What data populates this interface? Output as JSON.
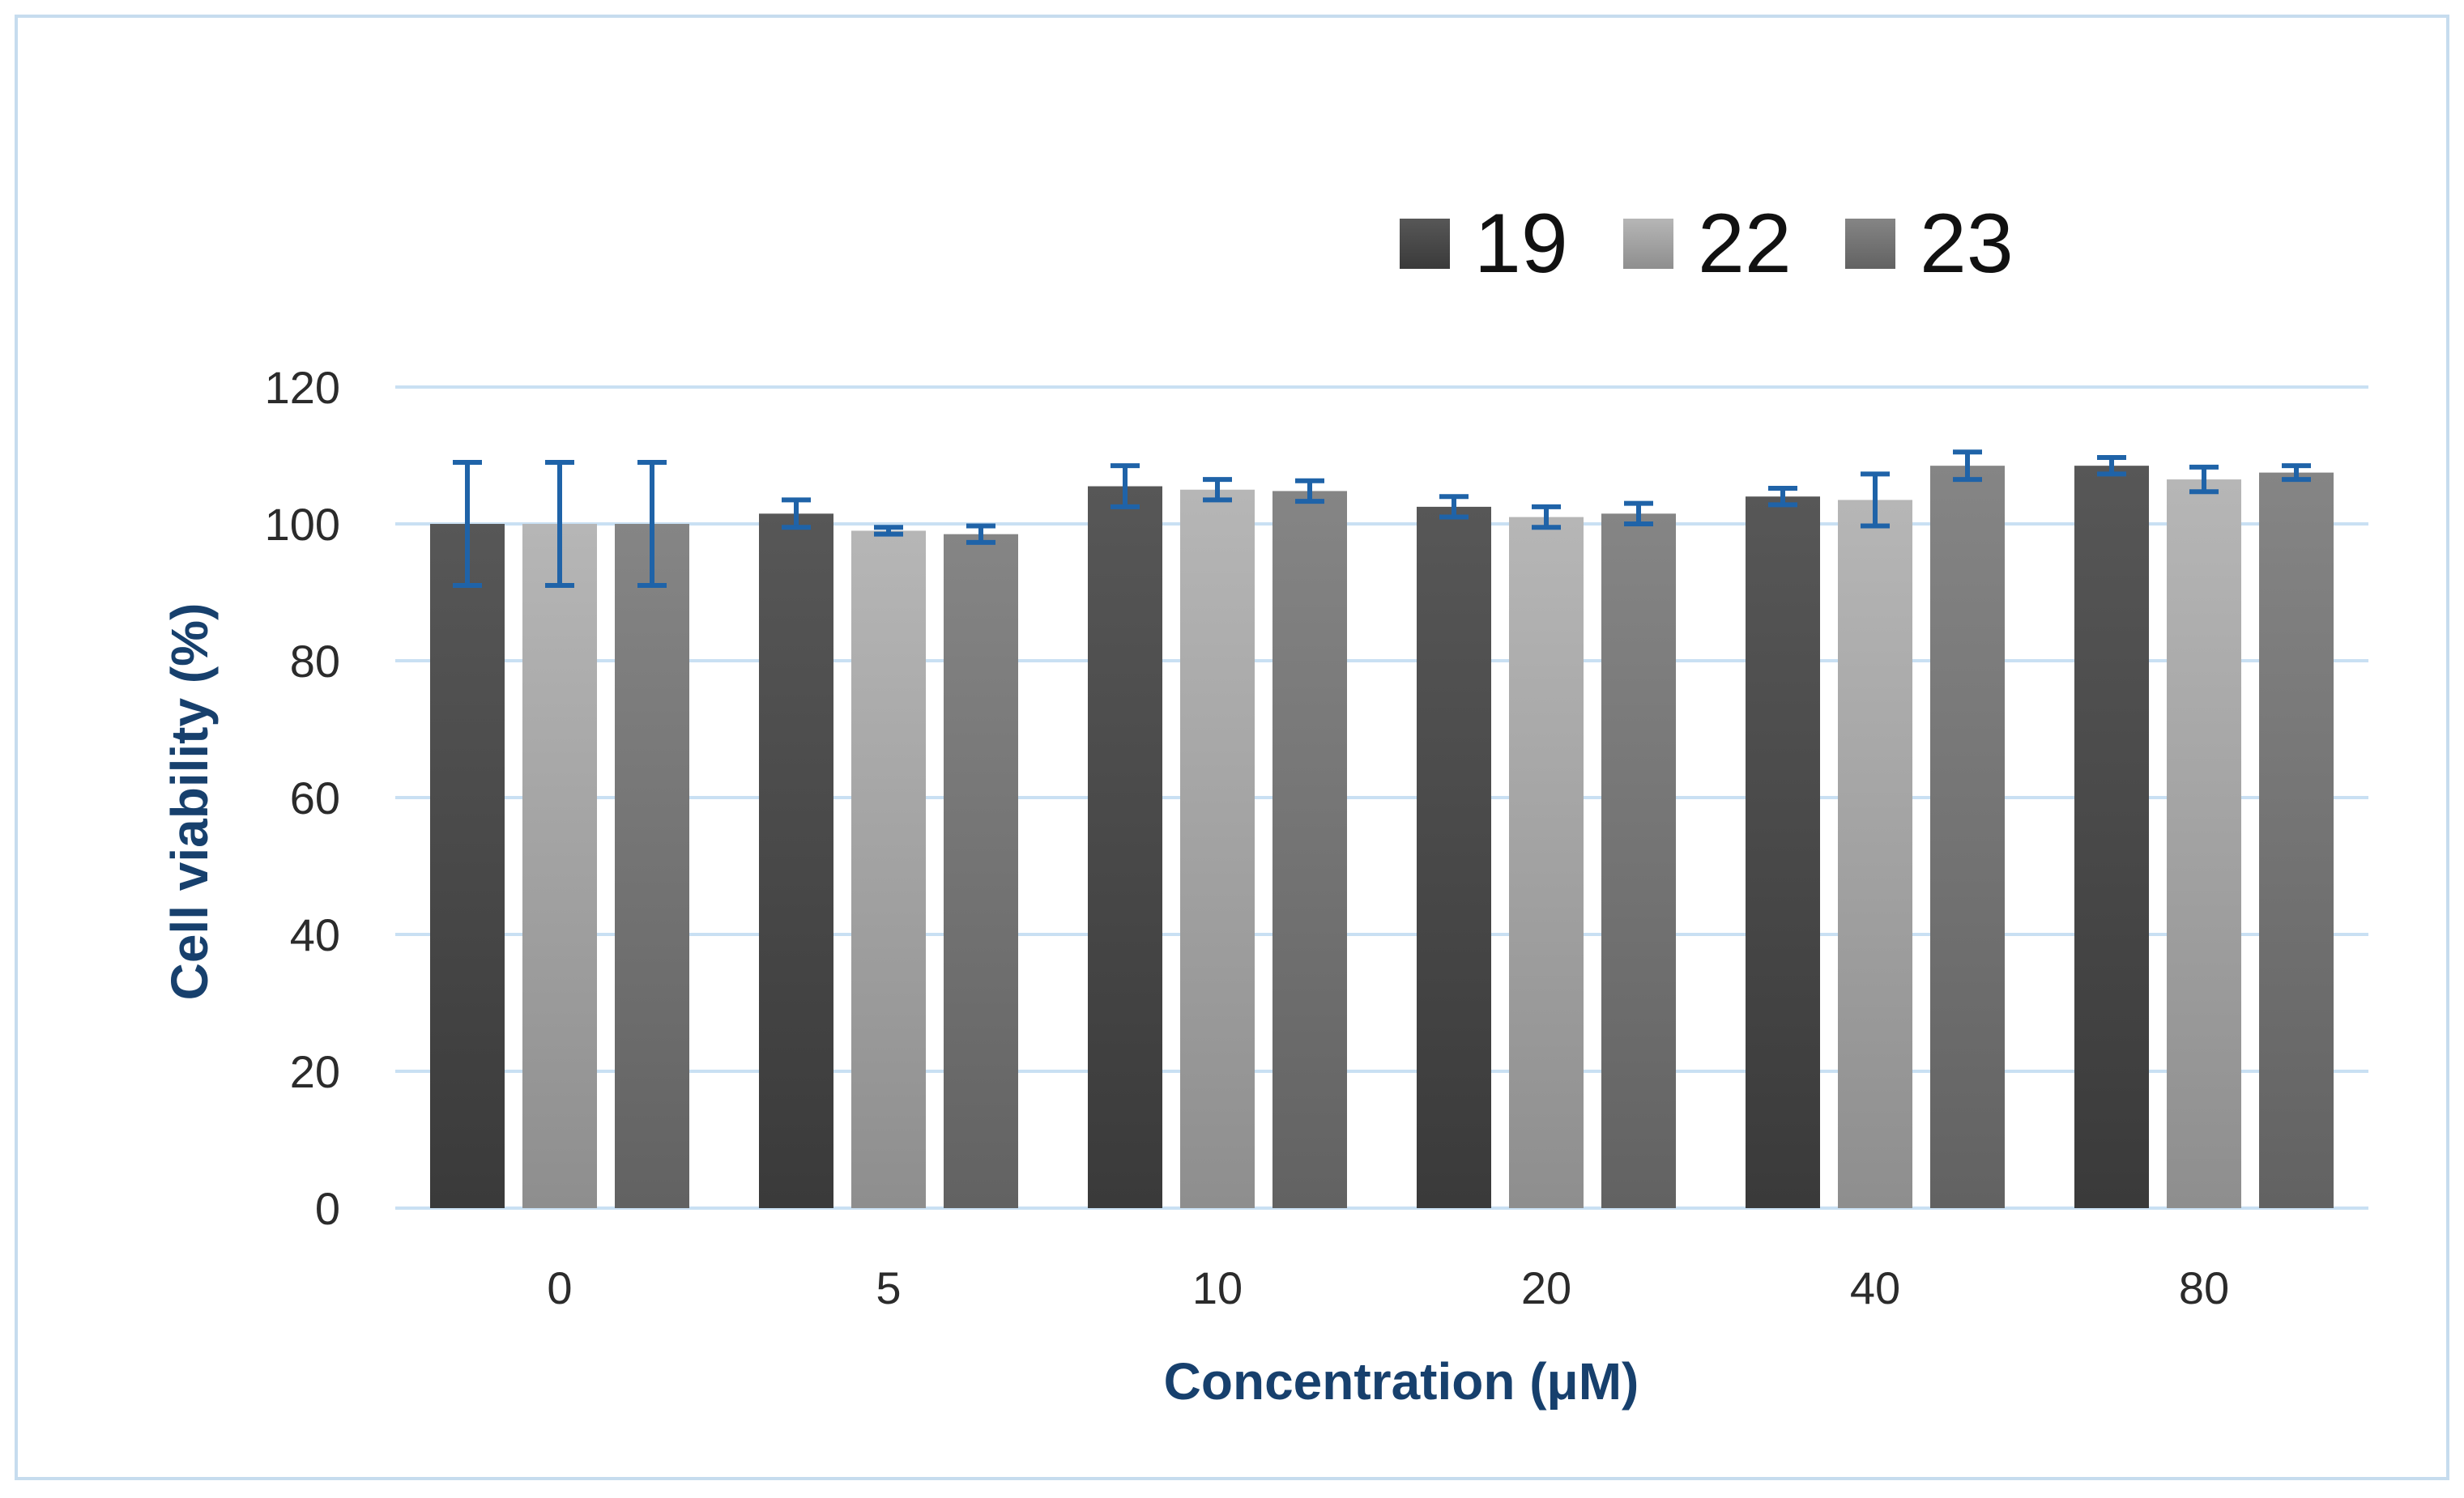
{
  "chart_data": {
    "type": "bar",
    "title": "",
    "xlabel": "Concentration (μM)",
    "ylabel": "Cell viability (%)",
    "categories": [
      "0",
      "5",
      "10",
      "20",
      "40",
      "80"
    ],
    "series": [
      {
        "name": "19",
        "values": [
          100,
          101.5,
          105.5,
          102.5,
          104,
          108.5
        ],
        "errors": [
          9,
          2,
          3,
          1.5,
          1.2,
          1.2
        ]
      },
      {
        "name": "22",
        "values": [
          100,
          99,
          105,
          101,
          103.5,
          106.5
        ],
        "errors": [
          9,
          0.5,
          1.5,
          1.5,
          3.8,
          1.8
        ]
      },
      {
        "name": "23",
        "values": [
          100,
          98.5,
          104.8,
          101.5,
          108.5,
          107.5
        ],
        "errors": [
          9,
          1.2,
          1.5,
          1.5,
          2,
          1
        ]
      }
    ],
    "ylim": [
      0,
      120
    ],
    "yticks": [
      0,
      20,
      40,
      60,
      80,
      100,
      120
    ],
    "grid": true,
    "legend": "top-right",
    "colors": {
      "series_19": "#474747",
      "series_22": "#aaaaaa",
      "series_23": "#777777",
      "error_bar": "#1f63a8",
      "grid": "#c9e0f3",
      "axis_title": "#17406d"
    }
  }
}
